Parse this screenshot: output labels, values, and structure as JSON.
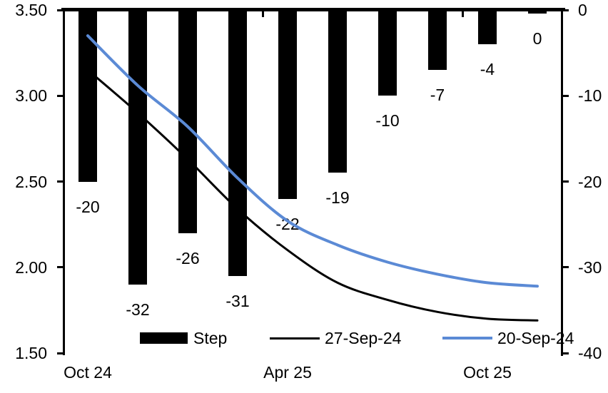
{
  "chart_data": {
    "type": "combo-bar-line",
    "title": "",
    "n_categories": 10,
    "x_axis": {
      "tick_labels": [
        {
          "label": "Oct 24",
          "category_index": 0
        },
        {
          "label": "Apr 25",
          "category_index": 4
        },
        {
          "label": "Oct 25",
          "category_index": 8
        }
      ]
    },
    "left_axis": {
      "min": 1.5,
      "max": 3.5,
      "tick_labels": [
        "3.50",
        "3.00",
        "2.50",
        "2.00",
        "1.50"
      ]
    },
    "right_axis": {
      "min": -40,
      "max": 0,
      "tick_labels": [
        "0",
        "-10",
        "-20",
        "-30",
        "-40"
      ]
    },
    "bar_series": {
      "name": "Step",
      "axis": "right",
      "color": "#000000",
      "values": [
        -20,
        -32,
        -26,
        -31,
        -22,
        -19,
        -10,
        -7,
        -4,
        0
      ],
      "data_labels": [
        "-20",
        "-32",
        "-26",
        "-31",
        "-22",
        "-19",
        "-10",
        "-7",
        "-4",
        "0"
      ]
    },
    "line_series": [
      {
        "name": "27-Sep-24",
        "color": "#000000",
        "axis": "left",
        "stroke_width": 3,
        "values": [
          3.15,
          2.9,
          2.63,
          2.34,
          2.1,
          1.91,
          1.81,
          1.74,
          1.7,
          1.69
        ]
      },
      {
        "name": "20-Sep-24",
        "color": "#5B8AD5",
        "axis": "left",
        "stroke_width": 4,
        "values": [
          3.35,
          3.06,
          2.82,
          2.52,
          2.27,
          2.13,
          2.03,
          1.96,
          1.91,
          1.89
        ]
      }
    ],
    "legend": {
      "position": "bottom",
      "items": [
        {
          "label": "Step",
          "marker": "bar",
          "color": "#000000"
        },
        {
          "label": "27-Sep-24",
          "marker": "line",
          "color": "#000000"
        },
        {
          "label": "20-Sep-24",
          "marker": "line",
          "color": "#5B8AD5"
        }
      ]
    },
    "colors": {
      "bar": "#000000",
      "line_black": "#000000",
      "line_blue": "#5B8AD5"
    }
  }
}
